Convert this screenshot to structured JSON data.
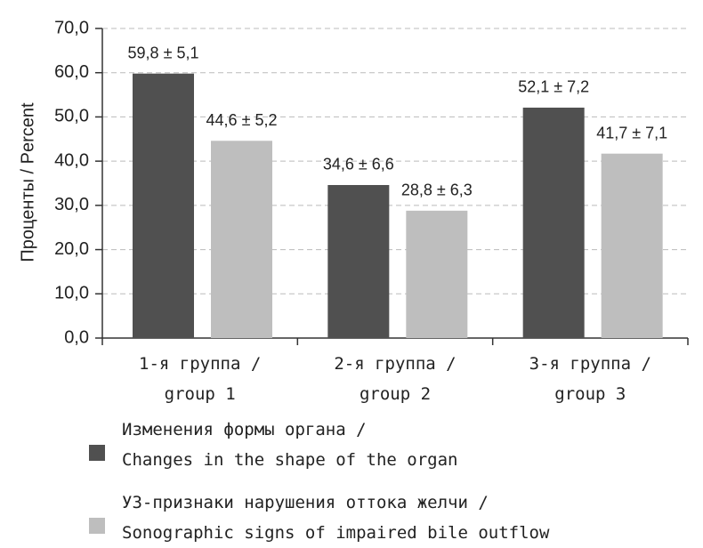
{
  "chart_data": {
    "type": "bar",
    "y_label": "Проценты / Percent",
    "categories": [
      "1-я группа /\ngroup 1",
      "2-я группа /\ngroup 2",
      "3-я группа /\ngroup 3"
    ],
    "series": [
      {
        "name": "Изменения формы органа /\nChanges in the shape of the organ",
        "color": "#505050",
        "values": [
          59.8,
          34.6,
          52.1
        ],
        "value_labels": [
          "59,8 ± 5,1",
          "34,6 ± 6,6",
          "52,1 ± 7,2"
        ]
      },
      {
        "name": "УЗ-признаки нарушения оттока желчи /\nSonographic signs of impaired bile outflow",
        "color": "#bebebe",
        "values": [
          44.6,
          28.8,
          41.7
        ],
        "value_labels": [
          "44,6 ± 5,2",
          "28,8 ± 6,3",
          "41,7 ± 7,1"
        ]
      }
    ],
    "ylim": [
      0,
      70
    ],
    "yticks": [
      {
        "value": 0,
        "label": "0,0"
      },
      {
        "value": 10,
        "label": "10,0"
      },
      {
        "value": 20,
        "label": "20,0"
      },
      {
        "value": 30,
        "label": "30,0"
      },
      {
        "value": 40,
        "label": "40,0"
      },
      {
        "value": 50,
        "label": "50,0"
      },
      {
        "value": 60,
        "label": "60,0"
      },
      {
        "value": 70,
        "label": "70,0"
      }
    ],
    "grid": true
  }
}
